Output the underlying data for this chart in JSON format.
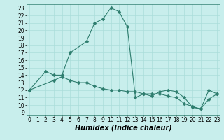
{
  "line1_x": [
    0,
    2,
    3,
    4,
    5,
    7,
    8,
    9,
    10,
    11,
    12,
    13,
    14,
    15,
    16,
    17,
    18,
    19,
    20,
    21,
    22,
    23
  ],
  "line1_y": [
    12,
    14.5,
    14,
    14,
    17,
    18.5,
    21,
    21.5,
    23,
    22.5,
    20.5,
    11,
    11.5,
    11.2,
    11.8,
    12,
    11.8,
    11,
    9.7,
    9.5,
    12,
    11.5
  ],
  "line2_x": [
    0,
    3,
    4,
    5,
    6,
    7,
    8,
    9,
    10,
    11,
    12,
    13,
    14,
    15,
    16,
    17,
    18,
    19,
    20,
    21,
    22,
    23
  ],
  "line2_y": [
    12,
    13.3,
    13.8,
    13.3,
    13,
    13,
    12.5,
    12.2,
    12,
    12,
    11.8,
    11.8,
    11.5,
    11.5,
    11.5,
    11.2,
    11,
    10.2,
    9.8,
    9.5,
    10.8,
    11.5
  ],
  "line_color": "#2e7d6e",
  "marker": "D",
  "marker_size": 2.5,
  "bg_color": "#c8eeec",
  "grid_color": "#aaddda",
  "xlim": [
    -0.3,
    23.3
  ],
  "ylim": [
    8.7,
    23.5
  ],
  "yticks": [
    9,
    10,
    11,
    12,
    13,
    14,
    15,
    16,
    17,
    18,
    19,
    20,
    21,
    22,
    23
  ],
  "xticks": [
    0,
    1,
    2,
    3,
    4,
    5,
    6,
    7,
    8,
    9,
    10,
    11,
    12,
    13,
    14,
    15,
    16,
    17,
    18,
    19,
    20,
    21,
    22,
    23
  ],
  "xlabel": "Humidex (Indice chaleur)",
  "xlabel_fontsize": 7,
  "tick_fontsize": 5.5,
  "linewidth": 0.8
}
